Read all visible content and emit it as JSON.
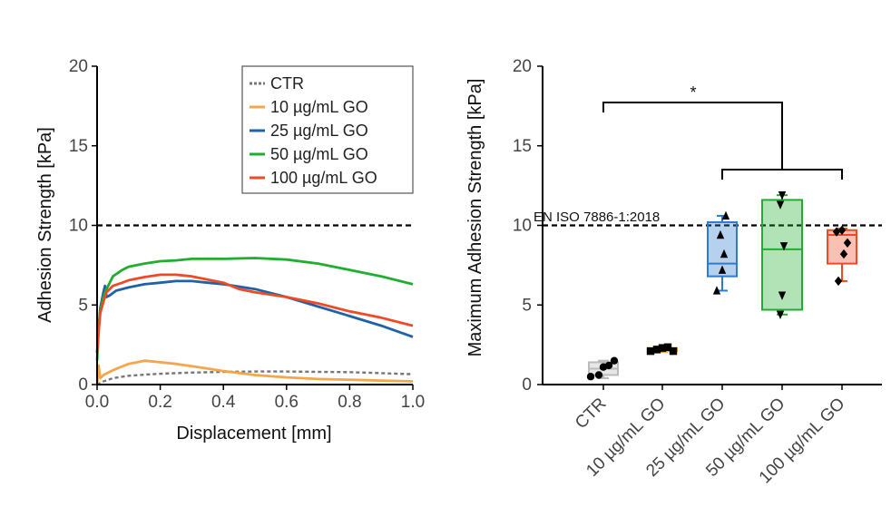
{
  "chart_data": [
    {
      "type": "line",
      "xlabel": "Displacement [mm]",
      "ylabel": "Adhesion Strength [kPa]",
      "xlim": [
        0.0,
        1.0
      ],
      "ylim": [
        0,
        20
      ],
      "xticks": [
        "0.0",
        "0.2",
        "0.4",
        "0.6",
        "0.8",
        "1.0"
      ],
      "yticks": [
        "0",
        "5",
        "10",
        "15",
        "20"
      ],
      "reference_line": 10,
      "legend_position": "top-right",
      "series": [
        {
          "name": "CTR",
          "color": "#777777",
          "style": "dashed",
          "x": [
            0,
            0.02,
            0.05,
            0.1,
            0.15,
            0.2,
            0.3,
            0.4,
            0.5,
            0.6,
            0.7,
            0.8,
            0.9,
            1.0
          ],
          "y": [
            0.0,
            0.2,
            0.4,
            0.55,
            0.62,
            0.68,
            0.75,
            0.8,
            0.82,
            0.82,
            0.8,
            0.78,
            0.72,
            0.65
          ]
        },
        {
          "name": "10 µg/mL GO",
          "color": "#f5a64b",
          "style": "solid",
          "x": [
            0,
            0.005,
            0.01,
            0.02,
            0.05,
            0.1,
            0.15,
            0.2,
            0.25,
            0.3,
            0.35,
            0.4,
            0.5,
            0.6,
            0.7,
            0.8,
            0.9,
            1.0
          ],
          "y": [
            0.0,
            1.2,
            0.4,
            0.6,
            0.9,
            1.3,
            1.5,
            1.4,
            1.3,
            1.15,
            1.0,
            0.85,
            0.6,
            0.45,
            0.35,
            0.3,
            0.25,
            0.2
          ]
        },
        {
          "name": "25 µg/mL GO",
          "color": "#1f62a8",
          "style": "solid",
          "x": [
            0,
            0.005,
            0.01,
            0.02,
            0.025,
            0.03,
            0.04,
            0.06,
            0.1,
            0.15,
            0.2,
            0.25,
            0.3,
            0.35,
            0.4,
            0.5,
            0.6,
            0.7,
            0.8,
            0.9,
            1.0
          ],
          "y": [
            2.0,
            3.5,
            4.8,
            5.8,
            6.2,
            5.5,
            5.6,
            5.9,
            6.1,
            6.3,
            6.4,
            6.5,
            6.5,
            6.4,
            6.3,
            6.0,
            5.5,
            4.9,
            4.3,
            3.7,
            3.0
          ]
        },
        {
          "name": "50 µg/mL GO",
          "color": "#1fae2f",
          "style": "solid",
          "x": [
            0,
            0.005,
            0.01,
            0.02,
            0.03,
            0.05,
            0.08,
            0.1,
            0.15,
            0.2,
            0.25,
            0.3,
            0.35,
            0.4,
            0.5,
            0.6,
            0.7,
            0.8,
            0.9,
            1.0
          ],
          "y": [
            1.5,
            3.5,
            4.6,
            5.5,
            6.0,
            6.8,
            7.2,
            7.4,
            7.6,
            7.75,
            7.8,
            7.9,
            7.9,
            7.9,
            7.95,
            7.85,
            7.6,
            7.2,
            6.8,
            6.3
          ]
        },
        {
          "name": "100 µg/mL GO",
          "color": "#ee4a26",
          "style": "solid",
          "x": [
            0,
            0.005,
            0.01,
            0.02,
            0.03,
            0.05,
            0.08,
            0.1,
            0.15,
            0.2,
            0.25,
            0.3,
            0.35,
            0.4,
            0.45,
            0.5,
            0.6,
            0.7,
            0.8,
            0.9,
            1.0
          ],
          "y": [
            2.0,
            3.3,
            4.5,
            5.2,
            5.8,
            6.2,
            6.4,
            6.55,
            6.75,
            6.9,
            6.9,
            6.8,
            6.6,
            6.4,
            6.0,
            5.8,
            5.5,
            5.1,
            4.6,
            4.2,
            3.7
          ]
        }
      ]
    },
    {
      "type": "box",
      "xlabel": "",
      "ylabel": "Maximum Adhesion Strength [kPa]",
      "ylim": [
        0,
        20
      ],
      "yticks": [
        "0",
        "5",
        "10",
        "15",
        "20"
      ],
      "categories": [
        "CTR",
        "10 µg/mL GO",
        "25 µg/mL GO",
        "50 µg/mL GO",
        "100 µg/mL GO"
      ],
      "reference_line": 10,
      "reference_label": "EN ISO 7886-1:2018",
      "significance_label": "*",
      "boxes": [
        {
          "name": "CTR",
          "color": "#bbbbbb",
          "whisker_low": 0.4,
          "q1": 0.6,
          "median": 1.0,
          "q3": 1.4,
          "whisker_high": 1.5,
          "points": [
            0.5,
            0.6,
            1.1,
            1.2,
            1.5
          ],
          "marker": "circle"
        },
        {
          "name": "10 µg/mL GO",
          "color": "#f5a64b",
          "whisker_low": 2.05,
          "q1": 2.1,
          "median": 2.2,
          "q3": 2.3,
          "whisker_high": 2.35,
          "points": [
            2.1,
            2.2,
            2.3,
            2.35,
            2.1
          ],
          "marker": "square"
        },
        {
          "name": "25 µg/mL GO",
          "color": "#2e7ccf",
          "whisker_low": 5.9,
          "q1": 6.8,
          "median": 7.6,
          "q3": 10.2,
          "whisker_high": 10.6,
          "points": [
            5.9,
            7.2,
            8.2,
            9.4,
            10.6
          ],
          "marker": "triangle-up"
        },
        {
          "name": "50 µg/mL GO",
          "color": "#1fae2f",
          "whisker_low": 4.4,
          "q1": 4.7,
          "median": 8.5,
          "q3": 11.6,
          "whisker_high": 11.9,
          "points": [
            4.4,
            5.6,
            8.7,
            11.3,
            11.9
          ],
          "marker": "triangle-down"
        },
        {
          "name": "100 µg/mL GO",
          "color": "#ee4a26",
          "whisker_low": 6.5,
          "q1": 7.6,
          "median": 9.4,
          "q3": 9.7,
          "whisker_high": 9.8,
          "points": [
            6.5,
            8.2,
            8.9,
            9.6,
            9.7
          ],
          "marker": "diamond"
        }
      ]
    }
  ]
}
